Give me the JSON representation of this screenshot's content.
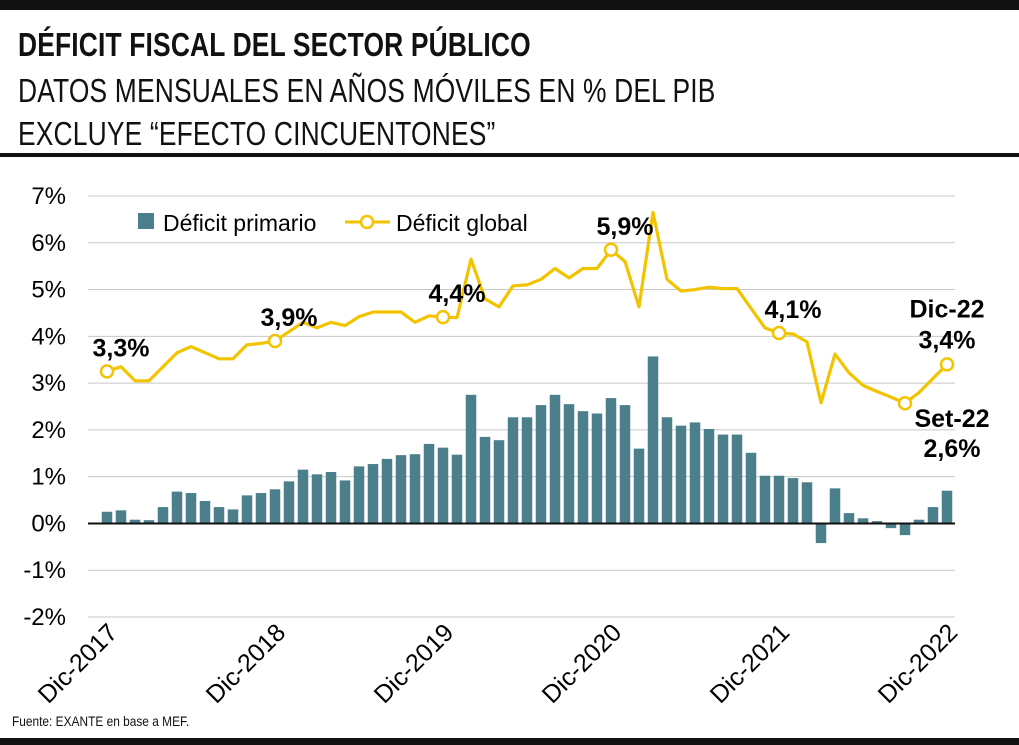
{
  "header": {
    "title": "DÉFICIT FISCAL DEL SECTOR PÚBLICO",
    "subtitle_1": "DATOS MENSUALES EN AÑOS MÓVILES EN % DEL PIB",
    "subtitle_2": "EXCLUYE “EFECTO CINCUENTONES”"
  },
  "footer": {
    "source": "Fuente: EXANTE en base a MEF."
  },
  "colors": {
    "bar": "#4b7f8c",
    "line": "#f2c400",
    "axis_zero": "#111111",
    "grid": "#c8c8c8",
    "rules": "#111111"
  },
  "chart_data": {
    "type": "bar+line",
    "ylim": [
      -2,
      7
    ],
    "yticks": [
      "7%",
      "6%",
      "5%",
      "4%",
      "3%",
      "2%",
      "1%",
      "0%",
      "-1%",
      "-2%"
    ],
    "ytick_values": [
      7,
      6,
      5,
      4,
      3,
      2,
      1,
      0,
      -1,
      -2
    ],
    "xtick_labels": [
      "Dic-2017",
      "Dic-2018",
      "Dic-2019",
      "Dic-2020",
      "Dic-2021",
      "Dic-2022"
    ],
    "xtick_indices": [
      0,
      12,
      24,
      36,
      48,
      60
    ],
    "legend": {
      "position": "top-left",
      "items": [
        "Déficit primario",
        "Déficit global"
      ]
    },
    "grid": true,
    "series": [
      {
        "name": "Déficit primario",
        "type": "bar",
        "values": [
          0.25,
          0.28,
          0.08,
          0.07,
          0.35,
          0.68,
          0.65,
          0.48,
          0.35,
          0.3,
          0.6,
          0.65,
          0.73,
          0.9,
          1.15,
          1.05,
          1.1,
          0.92,
          1.22,
          1.27,
          1.38,
          1.46,
          1.48,
          1.7,
          1.62,
          1.47,
          2.75,
          1.85,
          1.78,
          2.27,
          2.27,
          2.53,
          2.75,
          2.55,
          2.4,
          2.35,
          2.68,
          2.53,
          1.6,
          3.57,
          2.27,
          2.09,
          2.16,
          2.02,
          1.9,
          1.9,
          1.51,
          1.02,
          1.02,
          0.97,
          0.88,
          -0.42,
          0.75,
          0.22,
          0.11,
          0.05,
          -0.1,
          -0.25,
          0.08,
          0.35,
          0.7
        ]
      },
      {
        "name": "Déficit global",
        "type": "line",
        "values": [
          3.25,
          3.35,
          3.05,
          3.05,
          3.35,
          3.65,
          3.78,
          3.65,
          3.52,
          3.52,
          3.82,
          3.85,
          3.9,
          4.1,
          4.3,
          4.18,
          4.3,
          4.23,
          4.42,
          4.52,
          4.52,
          4.52,
          4.3,
          4.44,
          4.41,
          4.4,
          5.65,
          4.8,
          4.63,
          5.08,
          5.1,
          5.22,
          5.45,
          5.25,
          5.45,
          5.45,
          5.85,
          5.6,
          4.63,
          6.65,
          5.22,
          4.97,
          5.0,
          5.05,
          5.02,
          5.02,
          4.6,
          4.18,
          4.07,
          4.05,
          3.88,
          2.58,
          3.62,
          3.22,
          2.95,
          2.82,
          2.7,
          2.57,
          2.8,
          3.1,
          3.4
        ]
      }
    ],
    "annotations": [
      {
        "index": 0,
        "value": 3.25,
        "label": "3,3%"
      },
      {
        "index": 12,
        "value": 3.9,
        "label": "3,9%"
      },
      {
        "index": 24,
        "value": 4.41,
        "label": "4,4%"
      },
      {
        "index": 36,
        "value": 5.85,
        "label": "5,9%"
      },
      {
        "index": 48,
        "value": 4.07,
        "label": "4,1%"
      },
      {
        "index": 57,
        "value": 2.57,
        "label_top": "Set-22",
        "label_bottom": "2,6%"
      },
      {
        "index": 60,
        "value": 3.4,
        "label_top": "Dic-22",
        "label_bottom": "3,4%"
      }
    ]
  }
}
